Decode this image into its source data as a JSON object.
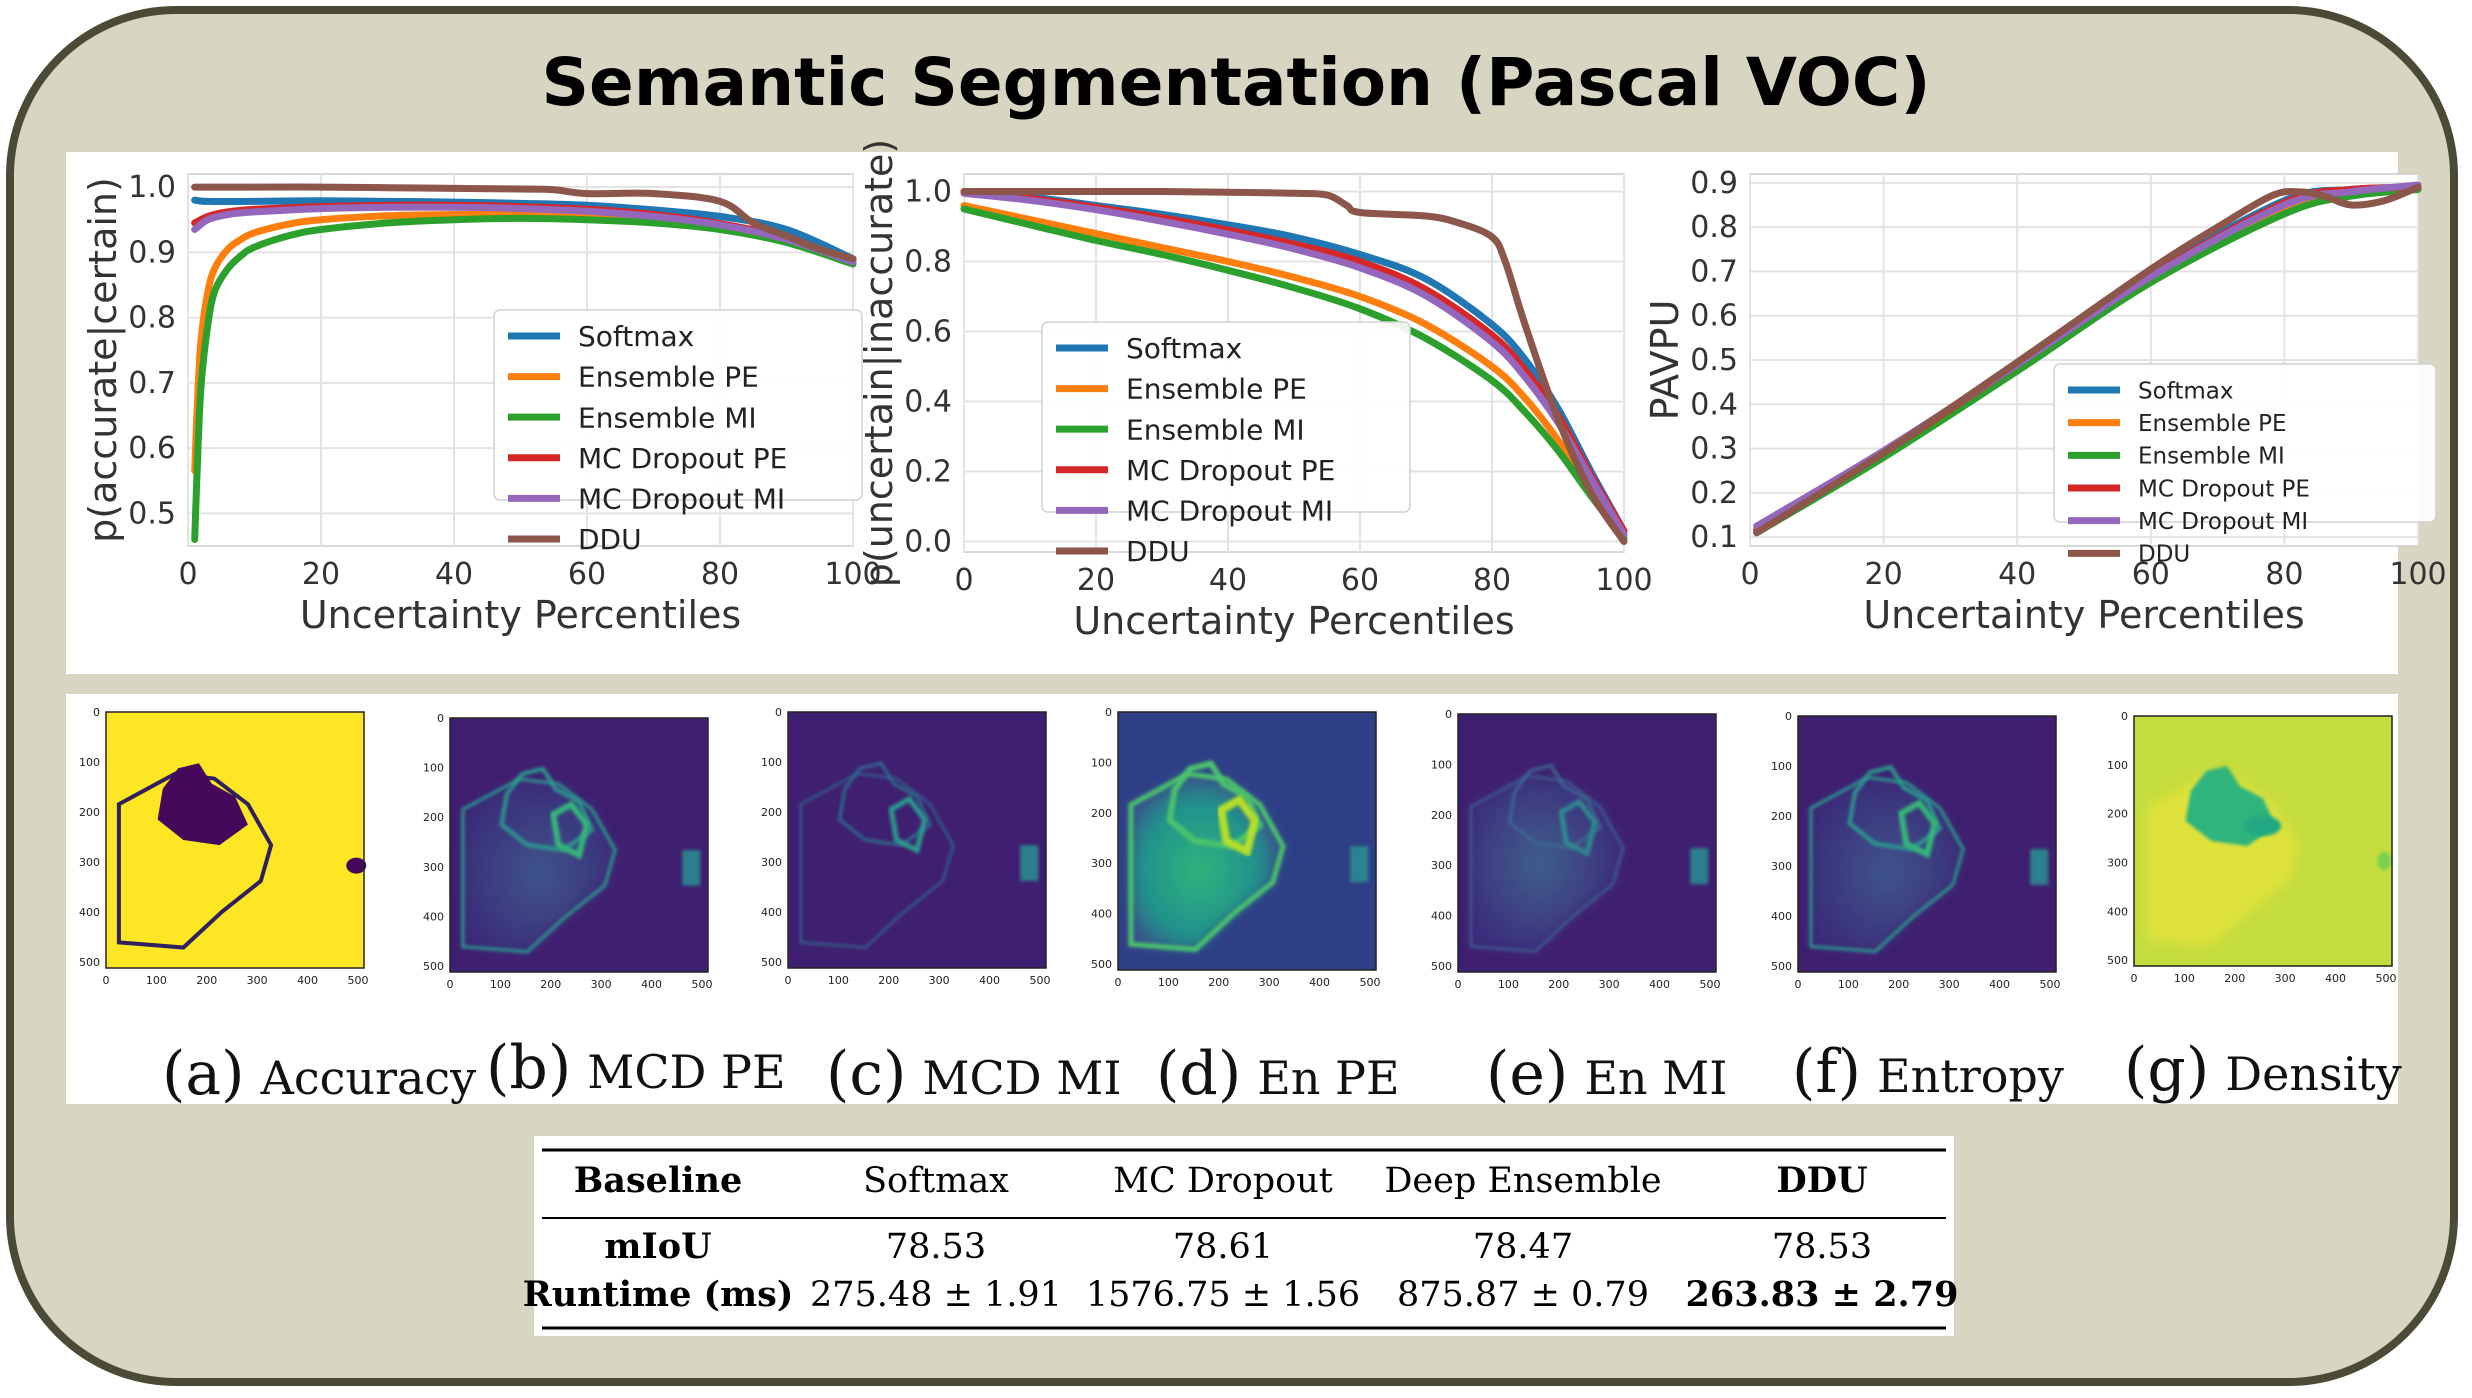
{
  "title": "Semantic Segmentation (Pascal VOC)",
  "legend_labels": [
    "Softmax",
    "Ensemble PE",
    "Ensemble MI",
    "MC Dropout PE",
    "MC Dropout MI",
    "DDU"
  ],
  "colors": {
    "Softmax": "#1f77b4",
    "Ensemble PE": "#ff7f0e",
    "Ensemble MI": "#2ca02c",
    "MC Dropout PE": "#d62728",
    "MC Dropout MI": "#9467bd",
    "DDU": "#8c564b",
    "frame_border": "#4a4a36",
    "frame_fill": "#d8d6c3"
  },
  "chart_data": [
    {
      "type": "line",
      "xlabel": "Uncertainty Percentiles",
      "ylabel": "p(accurate|certain)",
      "xlim": [
        0,
        100
      ],
      "ylim": [
        0.45,
        1.02
      ],
      "xticks": [
        0,
        20,
        40,
        60,
        80,
        100
      ],
      "yticks": [
        0.5,
        0.6,
        0.7,
        0.8,
        0.9,
        1.0
      ],
      "xticklabels": [
        "0",
        "20",
        "40",
        "60",
        "80",
        "100"
      ],
      "yticklabels": [
        "0.5",
        "0.6",
        "0.7",
        "0.8",
        "0.9",
        "1.0"
      ],
      "grid": true,
      "legend": "center-right",
      "series": [
        {
          "name": "Softmax",
          "x": [
            1,
            3,
            10,
            20,
            30,
            40,
            50,
            60,
            70,
            80,
            90,
            100
          ],
          "y": [
            0.98,
            0.978,
            0.978,
            0.979,
            0.978,
            0.977,
            0.975,
            0.972,
            0.965,
            0.955,
            0.935,
            0.89
          ]
        },
        {
          "name": "Ensemble PE",
          "x": [
            1,
            1.5,
            2,
            3,
            4,
            6,
            8,
            10,
            15,
            20,
            30,
            40,
            50,
            60,
            70,
            80,
            90,
            100
          ],
          "y": [
            0.565,
            0.69,
            0.77,
            0.84,
            0.875,
            0.905,
            0.92,
            0.93,
            0.943,
            0.95,
            0.956,
            0.958,
            0.958,
            0.956,
            0.95,
            0.94,
            0.92,
            0.885
          ]
        },
        {
          "name": "Ensemble MI",
          "x": [
            1,
            1.5,
            2,
            3,
            4,
            6,
            8,
            10,
            15,
            20,
            30,
            40,
            50,
            60,
            70,
            80,
            90,
            100
          ],
          "y": [
            0.46,
            0.6,
            0.7,
            0.79,
            0.84,
            0.875,
            0.895,
            0.908,
            0.925,
            0.935,
            0.945,
            0.95,
            0.952,
            0.95,
            0.945,
            0.935,
            0.915,
            0.882
          ]
        },
        {
          "name": "MC Dropout PE",
          "x": [
            1,
            3,
            6,
            10,
            20,
            30,
            40,
            50,
            60,
            70,
            80,
            90,
            100
          ],
          "y": [
            0.945,
            0.955,
            0.962,
            0.966,
            0.97,
            0.972,
            0.972,
            0.97,
            0.966,
            0.958,
            0.944,
            0.922,
            0.886
          ]
        },
        {
          "name": "MC Dropout MI",
          "x": [
            1,
            3,
            6,
            10,
            20,
            30,
            40,
            50,
            60,
            70,
            80,
            90,
            100
          ],
          "y": [
            0.935,
            0.95,
            0.958,
            0.962,
            0.967,
            0.969,
            0.969,
            0.967,
            0.963,
            0.955,
            0.942,
            0.92,
            0.885
          ]
        },
        {
          "name": "DDU",
          "x": [
            1,
            10,
            20,
            30,
            40,
            50,
            55,
            60,
            70,
            80,
            85,
            90,
            95,
            100
          ],
          "y": [
            1.0,
            1.0,
            1.0,
            0.999,
            0.998,
            0.997,
            0.996,
            0.99,
            0.99,
            0.978,
            0.945,
            0.925,
            0.905,
            0.89
          ]
        }
      ]
    },
    {
      "type": "line",
      "xlabel": "Uncertainty Percentiles",
      "ylabel": "p(uncertain|inaccurate)",
      "xlim": [
        0,
        100
      ],
      "ylim": [
        -0.03,
        1.05
      ],
      "xticks": [
        0,
        20,
        40,
        60,
        80,
        100
      ],
      "yticks": [
        0.0,
        0.2,
        0.4,
        0.6,
        0.8,
        1.0
      ],
      "xticklabels": [
        "0",
        "20",
        "40",
        "60",
        "80",
        "100"
      ],
      "yticklabels": [
        "0.0",
        "0.2",
        "0.4",
        "0.6",
        "0.8",
        "1.0"
      ],
      "grid": true,
      "legend": "lower-left",
      "series": [
        {
          "name": "Softmax",
          "x": [
            0,
            10,
            20,
            30,
            40,
            50,
            60,
            70,
            80,
            85,
            90,
            95,
            100
          ],
          "y": [
            1.0,
            0.985,
            0.96,
            0.935,
            0.905,
            0.87,
            0.82,
            0.75,
            0.62,
            0.52,
            0.38,
            0.2,
            0.03
          ]
        },
        {
          "name": "Ensemble PE",
          "x": [
            0,
            10,
            20,
            30,
            40,
            50,
            60,
            70,
            80,
            85,
            90,
            95,
            100
          ],
          "y": [
            0.96,
            0.92,
            0.88,
            0.84,
            0.8,
            0.755,
            0.7,
            0.62,
            0.5,
            0.41,
            0.29,
            0.15,
            0.01
          ]
        },
        {
          "name": "Ensemble MI",
          "x": [
            0,
            10,
            20,
            30,
            40,
            50,
            60,
            70,
            80,
            85,
            90,
            95,
            100
          ],
          "y": [
            0.95,
            0.905,
            0.86,
            0.82,
            0.775,
            0.725,
            0.665,
            0.58,
            0.46,
            0.37,
            0.26,
            0.13,
            0.01
          ]
        },
        {
          "name": "MC Dropout PE",
          "x": [
            0,
            10,
            20,
            30,
            40,
            50,
            60,
            70,
            80,
            85,
            90,
            95,
            100
          ],
          "y": [
            1.0,
            0.98,
            0.955,
            0.925,
            0.89,
            0.85,
            0.8,
            0.72,
            0.59,
            0.49,
            0.36,
            0.19,
            0.03
          ]
        },
        {
          "name": "MC Dropout MI",
          "x": [
            0,
            10,
            20,
            30,
            40,
            50,
            60,
            70,
            80,
            85,
            90,
            95,
            100
          ],
          "y": [
            0.995,
            0.975,
            0.948,
            0.915,
            0.878,
            0.836,
            0.782,
            0.702,
            0.57,
            0.47,
            0.34,
            0.18,
            0.02
          ]
        },
        {
          "name": "DDU",
          "x": [
            0,
            10,
            20,
            30,
            40,
            50,
            55,
            58,
            60,
            70,
            75,
            80,
            82,
            85,
            90,
            95,
            100
          ],
          "y": [
            1.0,
            1.0,
            1.0,
            1.0,
            0.998,
            0.995,
            0.99,
            0.96,
            0.94,
            0.93,
            0.91,
            0.87,
            0.8,
            0.62,
            0.35,
            0.14,
            0.0
          ]
        }
      ]
    },
    {
      "type": "line",
      "xlabel": "Uncertainty Percentiles",
      "ylabel": "PAVPU",
      "xlim": [
        0,
        100
      ],
      "ylim": [
        0.08,
        0.92
      ],
      "xticks": [
        0,
        20,
        40,
        60,
        80,
        100
      ],
      "yticks": [
        0.1,
        0.2,
        0.3,
        0.4,
        0.5,
        0.6,
        0.7,
        0.8,
        0.9
      ],
      "xticklabels": [
        "0",
        "20",
        "40",
        "60",
        "80",
        "100"
      ],
      "yticklabels": [
        "0.1",
        "0.2",
        "0.3",
        "0.4",
        "0.5",
        "0.6",
        "0.7",
        "0.8",
        "0.9"
      ],
      "grid": true,
      "legend": "lower-right",
      "series": [
        {
          "name": "Softmax",
          "x": [
            1,
            20,
            40,
            60,
            80,
            90,
            100
          ],
          "y": [
            0.11,
            0.285,
            0.49,
            0.695,
            0.86,
            0.885,
            0.89
          ]
        },
        {
          "name": "Ensemble PE",
          "x": [
            1,
            20,
            40,
            60,
            80,
            90,
            100
          ],
          "y": [
            0.12,
            0.29,
            0.485,
            0.685,
            0.84,
            0.875,
            0.89
          ]
        },
        {
          "name": "Ensemble MI",
          "x": [
            1,
            20,
            40,
            60,
            80,
            90,
            100
          ],
          "y": [
            0.11,
            0.28,
            0.475,
            0.675,
            0.83,
            0.87,
            0.885
          ]
        },
        {
          "name": "MC Dropout PE",
          "x": [
            1,
            20,
            40,
            60,
            80,
            90,
            100
          ],
          "y": [
            0.115,
            0.29,
            0.49,
            0.69,
            0.855,
            0.885,
            0.89
          ]
        },
        {
          "name": "MC Dropout MI",
          "x": [
            1,
            20,
            40,
            60,
            80,
            90,
            100
          ],
          "y": [
            0.125,
            0.295,
            0.49,
            0.688,
            0.85,
            0.88,
            0.895
          ]
        },
        {
          "name": "DDU",
          "x": [
            1,
            20,
            40,
            60,
            70,
            78,
            82,
            86,
            90,
            95,
            100
          ],
          "y": [
            0.11,
            0.29,
            0.495,
            0.705,
            0.8,
            0.87,
            0.88,
            0.87,
            0.85,
            0.86,
            0.89
          ]
        }
      ]
    }
  ],
  "maps": {
    "tick_labels": [
      "0",
      "100",
      "200",
      "300",
      "400",
      "500"
    ],
    "items": [
      {
        "letter": "(a)",
        "label": "Accuracy",
        "style": "accuracy"
      },
      {
        "letter": "(b)",
        "label": "MCD PE",
        "style": "mcd_pe"
      },
      {
        "letter": "(c)",
        "label": "MCD MI",
        "style": "mcd_mi"
      },
      {
        "letter": "(d)",
        "label": "En PE",
        "style": "en_pe"
      },
      {
        "letter": "(e)",
        "label": "En MI",
        "style": "en_mi"
      },
      {
        "letter": "(f)",
        "label": "Entropy",
        "style": "entropy"
      },
      {
        "letter": "(g)",
        "label": "Density",
        "style": "density"
      }
    ]
  },
  "table": {
    "headers": [
      "Baseline",
      "Softmax",
      "MC Dropout",
      "Deep Ensemble",
      "DDU"
    ],
    "rows": [
      [
        "mIoU",
        "78.53",
        "78.61",
        "78.47",
        "78.53"
      ],
      [
        "Runtime (ms)",
        "275.48 ± 1.91",
        "1576.75 ± 1.56",
        "875.87 ± 0.79",
        "263.83 ± 2.79"
      ]
    ]
  }
}
